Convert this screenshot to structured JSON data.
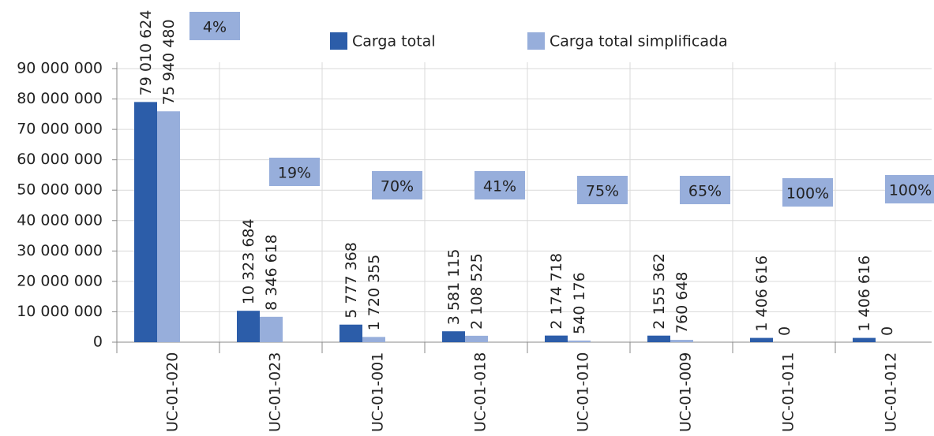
{
  "chart_data": {
    "type": "bar",
    "categories": [
      "UC-01-020",
      "UC-01-023",
      "UC-01-001",
      "UC-01-018",
      "UC-01-010",
      "UC-01-009",
      "UC-01-011",
      "UC-01-012"
    ],
    "series": [
      {
        "name": "Carga total",
        "color": "#2c5da9",
        "values": [
          79010624,
          10323684,
          5777368,
          3581115,
          2174718,
          2155362,
          1406616,
          1406616
        ],
        "value_labels": [
          "79 010 624",
          "10 323 684",
          "5 777 368",
          "3 581 115",
          "2 174 718",
          "2 155 362",
          "1 406 616",
          "1 406 616"
        ]
      },
      {
        "name": "Carga total simplificada",
        "color": "#97aedb",
        "values": [
          75940480,
          8346618,
          1720355,
          2108525,
          540176,
          760648,
          0,
          0
        ],
        "value_labels": [
          "75 940 480",
          "8 346 618",
          "1 720 355",
          "2 108 525",
          "540 176",
          "760 648",
          "0",
          "0"
        ]
      }
    ],
    "percent_labels": [
      "4%",
      "19%",
      "70%",
      "41%",
      "75%",
      "65%",
      "100%",
      "100%"
    ],
    "ylim": [
      0,
      90000000
    ],
    "yticks": [
      0,
      {
        "value": 10000000,
        "label": "10 000 000"
      },
      {
        "value": 20000000,
        "label": "20 000 000"
      },
      {
        "value": 30000000,
        "label": "30 000 000"
      },
      {
        "value": 40000000,
        "label": "40 000 000"
      },
      {
        "value": 50000000,
        "label": "50 000 000"
      },
      {
        "value": 60000000,
        "label": "60 000 000"
      },
      {
        "value": 70000000,
        "label": "70 000 000"
      },
      {
        "value": 80000000,
        "label": "80 000 000"
      },
      {
        "value": 90000000,
        "label": "90 000 000"
      }
    ],
    "grid": true,
    "legend": "top"
  }
}
